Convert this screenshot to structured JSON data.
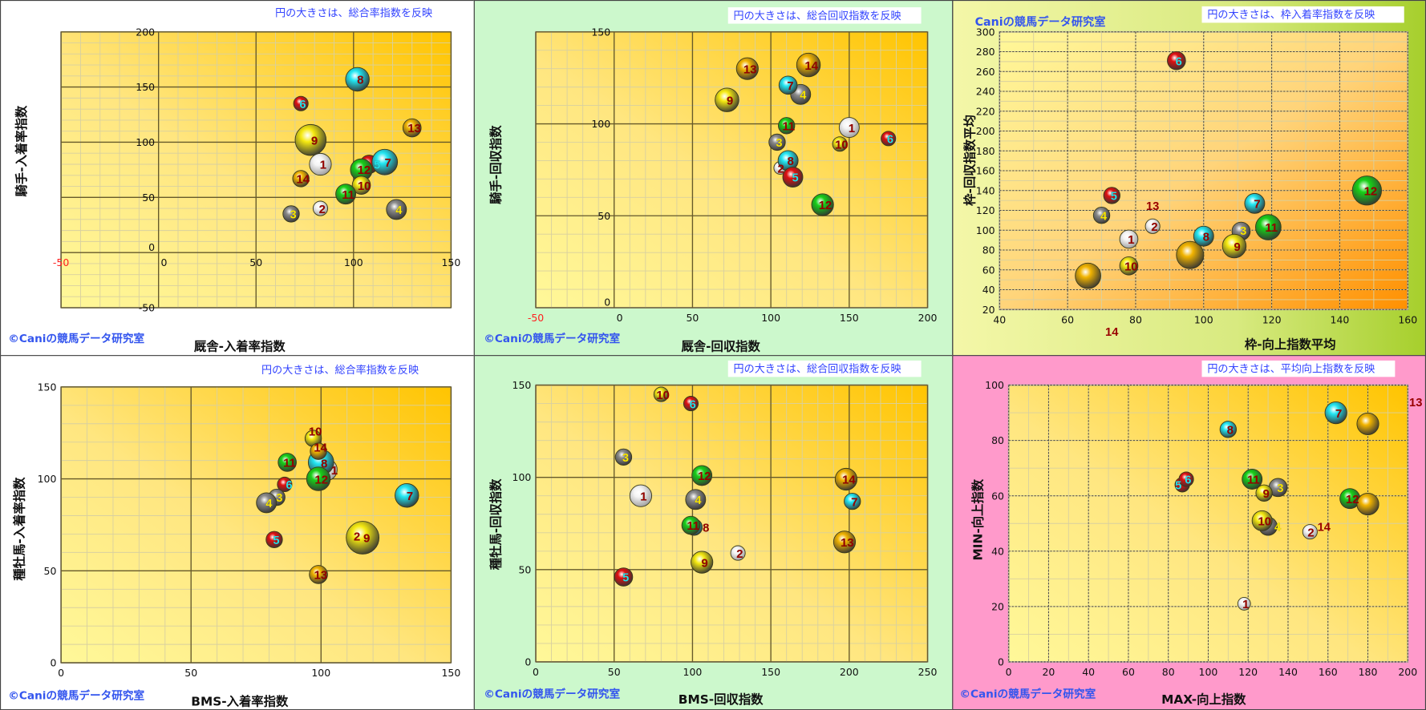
{
  "copyright": "©Caniの競馬データ研究室",
  "palette": {
    "white": "#f4f4f4",
    "gray": "#8a8a8a",
    "red": "#e01010",
    "cyan": "#22e6f2",
    "yellow": "#f6ea10",
    "green": "#18d018",
    "gold": "#f2b400",
    "label_dark": "#990000",
    "label_yellow": "#ffee00",
    "label_cyan": "#22e6f2"
  },
  "charts": [
    {
      "type": "scatter",
      "subtype": "bubble",
      "note": "円の大きさは、総合率指数を反映",
      "xlabel": "厩舎-入着率指数",
      "ylabel": "騎手-入着率指数",
      "xlim": [
        -50,
        150
      ],
      "ylim": [
        -50,
        200
      ],
      "xticks": [
        "-50",
        "0",
        "50",
        "100",
        "150"
      ],
      "yticks": [
        "-50",
        "0",
        "50",
        "100",
        "150",
        "200"
      ],
      "bubbles": [
        {
          "label": "9",
          "x": 78,
          "y": 102,
          "size": 17,
          "color": "yellow"
        },
        {
          "label": "8",
          "x": 102,
          "y": 157,
          "size": 13,
          "color": "cyan"
        },
        {
          "label": "6",
          "x": 73,
          "y": 135,
          "size": 8,
          "color": "red"
        },
        {
          "label": "13",
          "x": 130,
          "y": 113,
          "size": 10,
          "color": "gold"
        },
        {
          "label": "1",
          "x": 83,
          "y": 80,
          "size": 12,
          "color": "white"
        },
        {
          "label": "5",
          "x": 108,
          "y": 80,
          "size": 10,
          "color": "red"
        },
        {
          "label": "7",
          "x": 116,
          "y": 82,
          "size": 14,
          "color": "cyan"
        },
        {
          "label": "12",
          "x": 104,
          "y": 75,
          "size": 12,
          "color": "green"
        },
        {
          "label": "10",
          "x": 104,
          "y": 61,
          "size": 10,
          "color": "yellow"
        },
        {
          "label": "14",
          "x": 73,
          "y": 67,
          "size": 9,
          "color": "gold"
        },
        {
          "label": "11",
          "x": 96,
          "y": 53,
          "size": 11,
          "color": "green"
        },
        {
          "label": "2",
          "x": 83,
          "y": 40,
          "size": 8,
          "color": "white"
        },
        {
          "label": "3",
          "x": 68,
          "y": 35,
          "size": 9,
          "color": "gray"
        },
        {
          "label": "4",
          "x": 122,
          "y": 39,
          "size": 11,
          "color": "gray"
        }
      ]
    },
    {
      "type": "scatter",
      "subtype": "bubble",
      "note": "円の大きさは、総合回収指数を反映",
      "xlabel": "厩舎-回収指数",
      "ylabel": "騎手-回収指数",
      "xlim": [
        -50,
        200
      ],
      "ylim": [
        0,
        150
      ],
      "xticks": [
        "-50",
        "0",
        "50",
        "100",
        "150",
        "200"
      ],
      "yticks": [
        "0",
        "50",
        "100",
        "150"
      ],
      "bubbles": [
        {
          "label": "13",
          "x": 85,
          "y": 130,
          "size": 12,
          "color": "gold"
        },
        {
          "label": "14",
          "x": 124,
          "y": 132,
          "size": 13,
          "color": "gold"
        },
        {
          "label": "9",
          "x": 72,
          "y": 113,
          "size": 13,
          "color": "yellow"
        },
        {
          "label": "4",
          "x": 119,
          "y": 116,
          "size": 11,
          "color": "gray"
        },
        {
          "label": "7",
          "x": 111,
          "y": 121,
          "size": 10,
          "color": "cyan"
        },
        {
          "label": "1",
          "x": 150,
          "y": 98,
          "size": 11,
          "color": "white"
        },
        {
          "label": "11",
          "x": 110,
          "y": 99,
          "size": 9,
          "color": "green"
        },
        {
          "label": "10",
          "x": 144,
          "y": 89,
          "size": 8,
          "color": "yellow"
        },
        {
          "label": "6",
          "x": 175,
          "y": 92,
          "size": 8,
          "color": "red"
        },
        {
          "label": "3",
          "x": 104,
          "y": 90,
          "size": 9,
          "color": "gray"
        },
        {
          "label": "2",
          "x": 106,
          "y": 76,
          "size": 7,
          "color": "white"
        },
        {
          "label": "8",
          "x": 111,
          "y": 80,
          "size": 11,
          "color": "cyan"
        },
        {
          "label": "5",
          "x": 114,
          "y": 71,
          "size": 11,
          "color": "red"
        },
        {
          "label": "12",
          "x": 133,
          "y": 56,
          "size": 12,
          "color": "green"
        }
      ]
    },
    {
      "type": "scatter",
      "subtype": "bubble",
      "title": "Caniの競馬データ研究室",
      "note": "円の大きさは、枠入着率指数を反映",
      "xlabel": "枠-向上指数平均",
      "ylabel": "枠-回収指数平均",
      "xlim": [
        40,
        160
      ],
      "ylim": [
        20,
        300
      ],
      "xticks": [
        "40",
        "60",
        "80",
        "100",
        "120",
        "140",
        "160"
      ],
      "yticks": [
        "20",
        "40",
        "60",
        "80",
        "100",
        "120",
        "140",
        "160",
        "180",
        "200",
        "220",
        "240",
        "260",
        "280",
        "300"
      ],
      "bubbles": [
        {
          "label": "6",
          "x": 92,
          "y": 271,
          "size": 10,
          "color": "red"
        },
        {
          "label": "5",
          "x": 73,
          "y": 135,
          "size": 9,
          "color": "red"
        },
        {
          "label": "4",
          "x": 70,
          "y": 115,
          "size": 9,
          "color": "gray"
        },
        {
          "label": "2",
          "x": 85,
          "y": 104,
          "size": 8,
          "color": "white"
        },
        {
          "label": "1",
          "x": 78,
          "y": 91,
          "size": 10,
          "color": "white"
        },
        {
          "label": "10",
          "x": 78,
          "y": 64,
          "size": 10,
          "color": "yellow"
        },
        {
          "label": "14",
          "x": 66,
          "y": 54,
          "size": 14,
          "color": "gold",
          "hide_label": true
        },
        {
          "label": "13",
          "x": 96,
          "y": 75,
          "size": 15,
          "color": "gold",
          "hide_label": true
        },
        {
          "label": "8",
          "x": 100,
          "y": 94,
          "size": 11,
          "color": "cyan"
        },
        {
          "label": "3",
          "x": 111,
          "y": 99,
          "size": 10,
          "color": "gray"
        },
        {
          "label": "9",
          "x": 109,
          "y": 84,
          "size": 13,
          "color": "yellow"
        },
        {
          "label": "7",
          "x": 115,
          "y": 127,
          "size": 11,
          "color": "cyan"
        },
        {
          "label": "11",
          "x": 119,
          "y": 103,
          "size": 14,
          "color": "green"
        },
        {
          "label": "12",
          "x": 148,
          "y": 140,
          "size": 16,
          "color": "green"
        }
      ],
      "annotations": [
        {
          "text": "13",
          "x": 85,
          "y": 125
        },
        {
          "text": "14",
          "x": 73,
          "y": -2
        }
      ]
    },
    {
      "type": "scatter",
      "subtype": "bubble",
      "note": "円の大きさは、総合率指数を反映",
      "xlabel": "BMS-入着率指数",
      "ylabel": "種牡馬-入着率指数",
      "xlim": [
        0,
        150
      ],
      "ylim": [
        0,
        150
      ],
      "xticks": [
        "0",
        "50",
        "100",
        "150"
      ],
      "yticks": [
        "0",
        "50",
        "100",
        "150"
      ],
      "bubbles": [
        {
          "label": "2",
          "x": 116,
          "y": 69,
          "size": 8,
          "color": "white"
        },
        {
          "label": "9",
          "x": 116,
          "y": 68,
          "size": 18,
          "color": "yellow"
        },
        {
          "label": "7",
          "x": 133,
          "y": 91,
          "size": 13,
          "color": "cyan"
        },
        {
          "label": "10",
          "x": 97,
          "y": 122,
          "size": 9,
          "color": "yellow"
        },
        {
          "label": "1",
          "x": 102,
          "y": 105,
          "size": 12,
          "color": "white"
        },
        {
          "label": "8",
          "x": 100,
          "y": 109,
          "size": 14,
          "color": "cyan"
        },
        {
          "label": "14",
          "x": 99,
          "y": 115,
          "size": 9,
          "color": "gold"
        },
        {
          "label": "12",
          "x": 99,
          "y": 100,
          "size": 13,
          "color": "green"
        },
        {
          "label": "11",
          "x": 87,
          "y": 109,
          "size": 10,
          "color": "green"
        },
        {
          "label": "6",
          "x": 86,
          "y": 97,
          "size": 8,
          "color": "red"
        },
        {
          "label": "3",
          "x": 83,
          "y": 90,
          "size": 9,
          "color": "gray"
        },
        {
          "label": "4",
          "x": 79,
          "y": 87,
          "size": 11,
          "color": "gray"
        },
        {
          "label": "5",
          "x": 82,
          "y": 67,
          "size": 9,
          "color": "red"
        },
        {
          "label": "13",
          "x": 99,
          "y": 48,
          "size": 10,
          "color": "gold"
        }
      ]
    },
    {
      "type": "scatter",
      "subtype": "bubble",
      "note": "円の大きさは、総合回収指数を反映",
      "xlabel": "BMS-回収指数",
      "ylabel": "種牡馬-回収指数",
      "xlim": [
        0,
        250
      ],
      "ylim": [
        0,
        150
      ],
      "xticks": [
        "0",
        "50",
        "100",
        "150",
        "200",
        "250"
      ],
      "yticks": [
        "0",
        "50",
        "100",
        "150"
      ],
      "bubbles": [
        {
          "label": "10",
          "x": 80,
          "y": 145,
          "size": 8,
          "color": "yellow"
        },
        {
          "label": "6",
          "x": 99,
          "y": 140,
          "size": 8,
          "color": "red"
        },
        {
          "label": "3",
          "x": 56,
          "y": 111,
          "size": 9,
          "color": "gray"
        },
        {
          "label": "12",
          "x": 106,
          "y": 101,
          "size": 11,
          "color": "green"
        },
        {
          "label": "14",
          "x": 198,
          "y": 99,
          "size": 12,
          "color": "gold"
        },
        {
          "label": "1",
          "x": 67,
          "y": 90,
          "size": 12,
          "color": "white"
        },
        {
          "label": "4",
          "x": 102,
          "y": 88,
          "size": 11,
          "color": "gray"
        },
        {
          "label": "7",
          "x": 202,
          "y": 87,
          "size": 9,
          "color": "cyan"
        },
        {
          "label": "8",
          "x": 101,
          "y": 73,
          "size": 9,
          "color": "cyan"
        },
        {
          "label": "11",
          "x": 99,
          "y": 74,
          "size": 10,
          "color": "green"
        },
        {
          "label": "13",
          "x": 197,
          "y": 65,
          "size": 12,
          "color": "gold"
        },
        {
          "label": "2",
          "x": 129,
          "y": 59,
          "size": 8,
          "color": "white"
        },
        {
          "label": "9",
          "x": 106,
          "y": 54,
          "size": 12,
          "color": "yellow"
        },
        {
          "label": "5",
          "x": 56,
          "y": 46,
          "size": 10,
          "color": "red"
        }
      ]
    },
    {
      "type": "scatter",
      "subtype": "bubble",
      "note": "円の大きさは、平均向上指数を反映",
      "xlabel": "MAX-向上指数",
      "ylabel": "MIN-向上指数",
      "xlim": [
        0,
        200
      ],
      "ylim": [
        0,
        100
      ],
      "xticks": [
        "0",
        "20",
        "40",
        "60",
        "80",
        "100",
        "120",
        "140",
        "160",
        "180",
        "200"
      ],
      "yticks": [
        "0",
        "20",
        "40",
        "60",
        "80",
        "100"
      ],
      "bubbles": [
        {
          "label": "7",
          "x": 164,
          "y": 90,
          "size": 12,
          "color": "cyan"
        },
        {
          "label": "13",
          "x": 180,
          "y": 86,
          "size": 12,
          "color": "gold",
          "hide_label": true
        },
        {
          "label": "8",
          "x": 110,
          "y": 84,
          "size": 9,
          "color": "cyan"
        },
        {
          "label": "5",
          "x": 87,
          "y": 64,
          "size": 8,
          "color": "red"
        },
        {
          "label": "6",
          "x": 89,
          "y": 66,
          "size": 8,
          "color": "red"
        },
        {
          "label": "11",
          "x": 122,
          "y": 66,
          "size": 11,
          "color": "green"
        },
        {
          "label": "3",
          "x": 135,
          "y": 63,
          "size": 10,
          "color": "gray"
        },
        {
          "label": "9",
          "x": 128,
          "y": 61,
          "size": 9,
          "color": "yellow"
        },
        {
          "label": "12",
          "x": 171,
          "y": 59,
          "size": 11,
          "color": "green"
        },
        {
          "label": "14",
          "x": 180,
          "y": 57,
          "size": 12,
          "color": "gold",
          "hide_label": true
        },
        {
          "label": "4",
          "x": 130,
          "y": 49,
          "size": 10,
          "color": "gray"
        },
        {
          "label": "10",
          "x": 127,
          "y": 51,
          "size": 11,
          "color": "yellow"
        },
        {
          "label": "2",
          "x": 151,
          "y": 47,
          "size": 8,
          "color": "white"
        },
        {
          "label": "1",
          "x": 118,
          "y": 21,
          "size": 7,
          "color": "white"
        }
      ],
      "annotations": [
        {
          "text": "13",
          "x": 204,
          "y": 94
        },
        {
          "text": "14",
          "x": 158,
          "y": 49
        }
      ]
    }
  ]
}
